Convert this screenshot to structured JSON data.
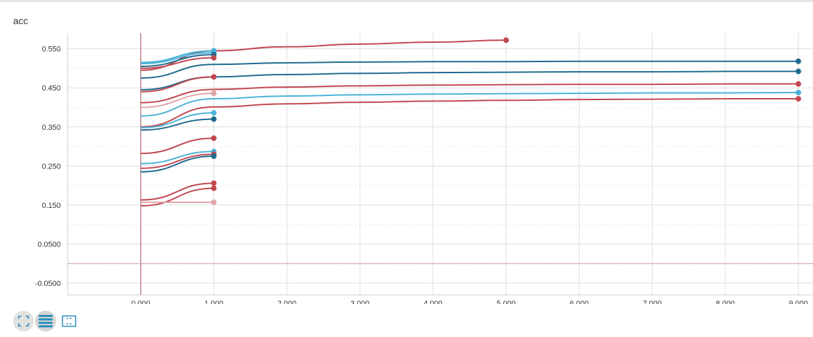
{
  "title": "acc",
  "colors": {
    "red": "#c1474f",
    "dark_blue": "#1f6a90",
    "light_blue": "#4bb3d8",
    "faint_pink": "#e0a4a8",
    "axis_line": "#a8505a",
    "baseline": "#b07078"
  },
  "toolbar": [
    {
      "name": "fit-domain-icon",
      "icon": "expand-corners"
    },
    {
      "name": "toggle-log-scale-icon",
      "icon": "stacked-bars"
    },
    {
      "name": "toggle-selection-icon",
      "icon": "dashed-frame"
    }
  ],
  "chart_data": {
    "type": "line",
    "title": "acc",
    "xlim": [
      -1.0,
      9.2
    ],
    "ylim": [
      -0.08,
      0.59
    ],
    "x_ticks": [
      "0.000",
      "1.000",
      "2.000",
      "3.000",
      "4.000",
      "5.000",
      "6.000",
      "7.000",
      "8.000",
      "9.000"
    ],
    "y_ticks": [
      {
        "value": 0.55,
        "label": "0.550"
      },
      {
        "value": 0.45,
        "label": "0.450"
      },
      {
        "value": 0.35,
        "label": "0.350"
      },
      {
        "value": 0.25,
        "label": "0.250"
      },
      {
        "value": 0.15,
        "label": "0.150"
      },
      {
        "value": 0.05,
        "label": "0.0500"
      },
      {
        "value": -0.05,
        "label": "-0.0500"
      }
    ],
    "grid": true,
    "series": [
      {
        "color": "red",
        "x": [
          0,
          1,
          2,
          3,
          4,
          5
        ],
        "values": [
          0.495,
          0.545,
          0.555,
          0.562,
          0.567,
          0.572
        ]
      },
      {
        "color": "light_blue",
        "x": [
          0,
          1
        ],
        "values": [
          0.515,
          0.545
        ]
      },
      {
        "color": "light_blue",
        "x": [
          0,
          1
        ],
        "values": [
          0.512,
          0.54
        ]
      },
      {
        "color": "dark_blue",
        "x": [
          0,
          1
        ],
        "values": [
          0.505,
          0.535
        ]
      },
      {
        "color": "red",
        "x": [
          0,
          1
        ],
        "values": [
          0.5,
          0.527
        ]
      },
      {
        "color": "dark_blue",
        "x": [
          0,
          1,
          2,
          3,
          4,
          5,
          6,
          7,
          8,
          9
        ],
        "values": [
          0.475,
          0.51,
          0.514,
          0.516,
          0.517,
          0.517,
          0.518,
          0.518,
          0.518,
          0.518
        ]
      },
      {
        "color": "dark_blue",
        "x": [
          0,
          1,
          2,
          3,
          4,
          5,
          6,
          7,
          8,
          9
        ],
        "values": [
          0.445,
          0.478,
          0.484,
          0.487,
          0.489,
          0.49,
          0.491,
          0.491,
          0.492,
          0.492
        ]
      },
      {
        "color": "red",
        "x": [
          0,
          1
        ],
        "values": [
          0.44,
          0.478
        ]
      },
      {
        "color": "red",
        "x": [
          0,
          1,
          2,
          3,
          4,
          5,
          6,
          7,
          8,
          9
        ],
        "values": [
          0.412,
          0.446,
          0.452,
          0.455,
          0.457,
          0.458,
          0.459,
          0.459,
          0.46,
          0.46
        ]
      },
      {
        "color": "faint_pink",
        "x": [
          0,
          1
        ],
        "values": [
          0.4,
          0.436
        ]
      },
      {
        "color": "light_blue",
        "x": [
          0,
          1,
          2,
          3,
          4,
          5,
          6,
          7,
          8,
          9
        ],
        "values": [
          0.378,
          0.422,
          0.429,
          0.432,
          0.434,
          0.435,
          0.436,
          0.437,
          0.437,
          0.438
        ]
      },
      {
        "color": "red",
        "x": [
          0,
          1,
          2,
          3,
          4,
          5,
          6,
          7,
          8,
          9
        ],
        "values": [
          0.35,
          0.401,
          0.409,
          0.413,
          0.416,
          0.418,
          0.42,
          0.421,
          0.422,
          0.422
        ]
      },
      {
        "color": "light_blue",
        "x": [
          0,
          1
        ],
        "values": [
          0.348,
          0.386
        ]
      },
      {
        "color": "dark_blue",
        "x": [
          0,
          1
        ],
        "values": [
          0.342,
          0.37
        ]
      },
      {
        "color": "red",
        "x": [
          0,
          1
        ],
        "values": [
          0.282,
          0.321
        ]
      },
      {
        "color": "light_blue",
        "x": [
          0,
          1
        ],
        "values": [
          0.256,
          0.287
        ]
      },
      {
        "color": "red",
        "x": [
          0,
          1
        ],
        "values": [
          0.244,
          0.28
        ]
      },
      {
        "color": "dark_blue",
        "x": [
          0,
          1
        ],
        "values": [
          0.235,
          0.275
        ]
      },
      {
        "color": "red",
        "x": [
          0,
          1
        ],
        "values": [
          0.163,
          0.206
        ]
      },
      {
        "color": "red",
        "x": [
          0,
          1
        ],
        "values": [
          0.148,
          0.193
        ]
      },
      {
        "color": "faint_pink",
        "x": [
          0,
          1
        ],
        "values": [
          0.157,
          0.157
        ]
      }
    ]
  }
}
